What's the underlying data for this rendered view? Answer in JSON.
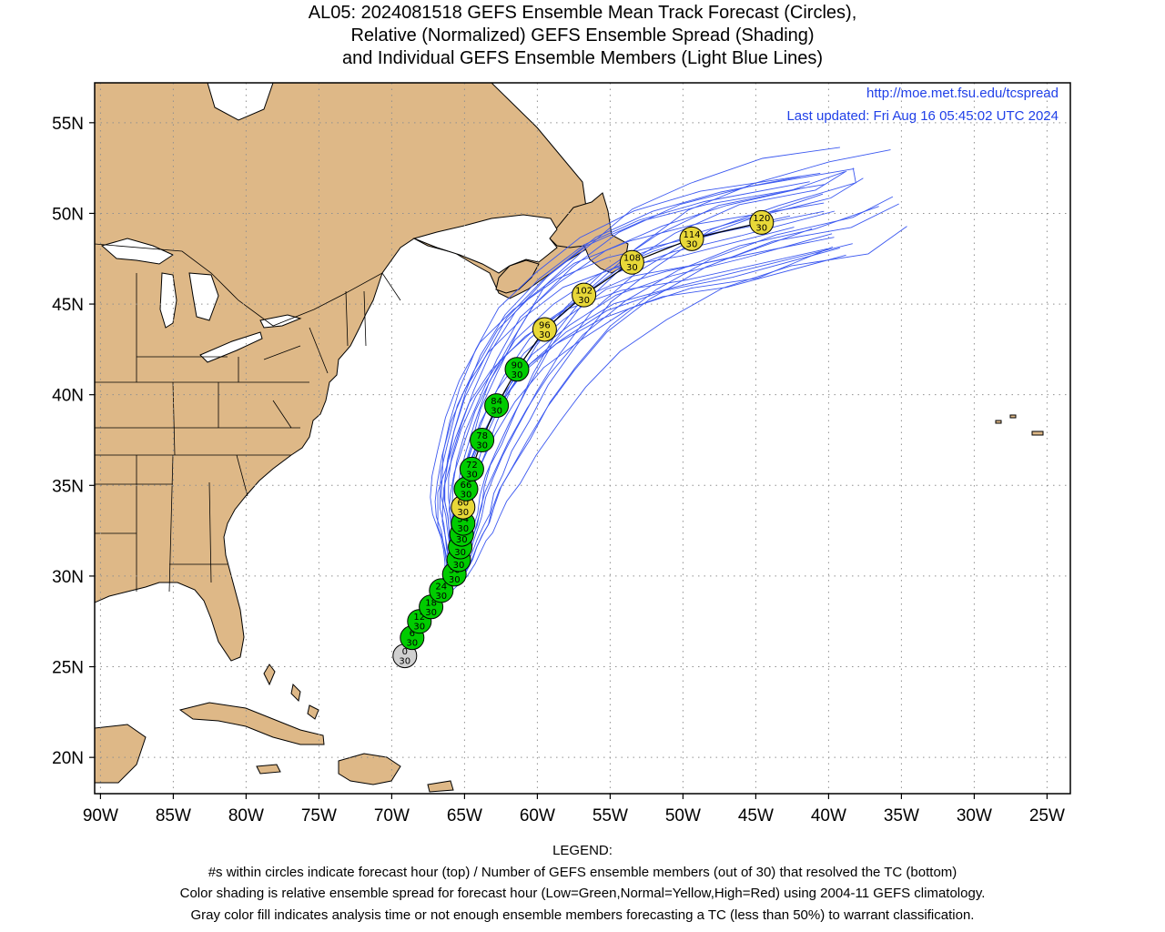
{
  "title": {
    "line1": "AL05: 2024081518 GEFS Ensemble Mean Track Forecast (Circles),",
    "line2": "Relative (Normalized) GEFS Ensemble Spread (Shading)",
    "line3": "and Individual GEFS Ensemble Members (Light Blue Lines)"
  },
  "credits": {
    "url": "http://moe.met.fsu.edu/tcspread",
    "updated": "Last updated: Fri Aug 16 05:45:02 UTC 2024"
  },
  "axes": {
    "lon_ticks": [
      {
        "lon": -90,
        "label": "90W"
      },
      {
        "lon": -85,
        "label": "85W"
      },
      {
        "lon": -80,
        "label": "80W"
      },
      {
        "lon": -75,
        "label": "75W"
      },
      {
        "lon": -70,
        "label": "70W"
      },
      {
        "lon": -65,
        "label": "65W"
      },
      {
        "lon": -60,
        "label": "60W"
      },
      {
        "lon": -55,
        "label": "55W"
      },
      {
        "lon": -50,
        "label": "50W"
      },
      {
        "lon": -45,
        "label": "45W"
      },
      {
        "lon": -40,
        "label": "40W"
      },
      {
        "lon": -35,
        "label": "35W"
      },
      {
        "lon": -30,
        "label": "30W"
      },
      {
        "lon": -25,
        "label": "25W"
      }
    ],
    "lat_ticks": [
      {
        "lat": 20,
        "label": "20N"
      },
      {
        "lat": 25,
        "label": "25N"
      },
      {
        "lat": 30,
        "label": "30N"
      },
      {
        "lat": 35,
        "label": "35N"
      },
      {
        "lat": 40,
        "label": "40N"
      },
      {
        "lat": 45,
        "label": "45N"
      },
      {
        "lat": 50,
        "label": "50N"
      },
      {
        "lat": 55,
        "label": "55N"
      }
    ],
    "lon_range": [
      -90.4,
      -23.4
    ],
    "lat_range": [
      18.0,
      57.2
    ],
    "grid": true
  },
  "colors": {
    "land": "#deb887",
    "green": "#00cc00",
    "yellow": "#e8d838",
    "gray": "#d0d0d0",
    "member_line": "#3b58f0",
    "credit_text": "#2040e8"
  },
  "track": [
    {
      "hour": "0",
      "members": "30",
      "lon": -69.1,
      "lat": 25.6,
      "color": "gray"
    },
    {
      "hour": "6",
      "members": "30",
      "lon": -68.6,
      "lat": 26.6,
      "color": "green"
    },
    {
      "hour": "12",
      "members": "30",
      "lon": -68.1,
      "lat": 27.5,
      "color": "green"
    },
    {
      "hour": "18",
      "members": "30",
      "lon": -67.3,
      "lat": 28.3,
      "color": "green"
    },
    {
      "hour": "24",
      "members": "30",
      "lon": -66.6,
      "lat": 29.2,
      "color": "green"
    },
    {
      "hour": "30",
      "members": "30",
      "lon": -65.7,
      "lat": 30.1,
      "color": "green"
    },
    {
      "hour": "36",
      "members": "30",
      "lon": -65.4,
      "lat": 30.9,
      "color": "green"
    },
    {
      "hour": "42",
      "members": "30",
      "lon": -65.3,
      "lat": 31.6,
      "color": "green"
    },
    {
      "hour": "48",
      "members": "30",
      "lon": -65.2,
      "lat": 32.3,
      "color": "green"
    },
    {
      "hour": "54",
      "members": "30",
      "lon": -65.1,
      "lat": 32.9,
      "color": "green"
    },
    {
      "hour": "60",
      "members": "30",
      "lon": -65.1,
      "lat": 33.8,
      "color": "yellow"
    },
    {
      "hour": "66",
      "members": "30",
      "lon": -64.9,
      "lat": 34.8,
      "color": "green"
    },
    {
      "hour": "72",
      "members": "30",
      "lon": -64.5,
      "lat": 35.9,
      "color": "green"
    },
    {
      "hour": "78",
      "members": "30",
      "lon": -63.8,
      "lat": 37.5,
      "color": "green"
    },
    {
      "hour": "84",
      "members": "30",
      "lon": -62.8,
      "lat": 39.4,
      "color": "green"
    },
    {
      "hour": "90",
      "members": "30",
      "lon": -61.4,
      "lat": 41.4,
      "color": "green"
    },
    {
      "hour": "96",
      "members": "30",
      "lon": -59.5,
      "lat": 43.6,
      "color": "yellow"
    },
    {
      "hour": "102",
      "members": "30",
      "lon": -56.8,
      "lat": 45.5,
      "color": "yellow"
    },
    {
      "hour": "108",
      "members": "30",
      "lon": -53.5,
      "lat": 47.3,
      "color": "yellow"
    },
    {
      "hour": "114",
      "members": "30",
      "lon": -49.4,
      "lat": 48.6,
      "color": "yellow"
    },
    {
      "hour": "120",
      "members": "30",
      "lon": -44.6,
      "lat": 49.5,
      "color": "yellow"
    }
  ],
  "legend": {
    "heading": "LEGEND:",
    "line1": "#s within circles indicate forecast hour (top) / Number of GEFS ensemble members (out of 30) that resolved the TC (bottom)",
    "line2": "Color shading is relative ensemble spread for forecast hour (Low=Green,Normal=Yellow,High=Red) using 2004-11 GEFS climatology.",
    "line3": "Gray color fill indicates analysis time or not enough ensemble members forecasting a TC (less than 50%) to warrant classification."
  }
}
